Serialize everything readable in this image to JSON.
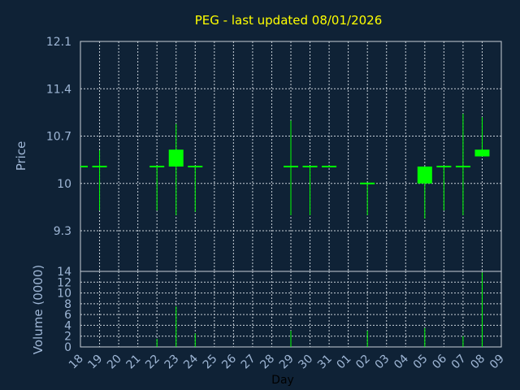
{
  "chart_data": {
    "type": "candlestick",
    "title": "PEG - last updated 08/01/2026",
    "xlabel": "Day",
    "price_ylabel": "Price",
    "volume_ylabel": "Volume (0000)",
    "categories": [
      "18",
      "19",
      "20",
      "21",
      "22",
      "23",
      "24",
      "25",
      "26",
      "27",
      "28",
      "29",
      "30",
      "31",
      "01",
      "02",
      "03",
      "04",
      "05",
      "06",
      "07",
      "08",
      "09"
    ],
    "price_ticks": [
      "12.1",
      "11.4",
      "10.7",
      "10",
      "9.3"
    ],
    "price_range": [
      8.7,
      12.1
    ],
    "volume_ticks": [
      "14",
      "12",
      "10",
      "8",
      "6",
      "4",
      "2",
      "0"
    ],
    "volume_range": [
      0,
      14
    ],
    "grid": true,
    "candles": [
      {
        "day": "18",
        "open": 10.25,
        "close": 10.25,
        "high": 10.25,
        "low": 10.25,
        "volume": 0
      },
      {
        "day": "19",
        "open": 10.25,
        "close": 10.25,
        "high": 10.49,
        "low": 9.6,
        "volume": 0
      },
      {
        "day": "22",
        "open": 10.25,
        "close": 10.25,
        "high": 10.25,
        "low": 9.6,
        "volume": 1.5
      },
      {
        "day": "23",
        "open": 10.25,
        "close": 10.5,
        "high": 10.88,
        "low": 9.53,
        "volume": 7.5
      },
      {
        "day": "24",
        "open": 10.25,
        "close": 10.25,
        "high": 10.25,
        "low": 9.58,
        "volume": 2.5
      },
      {
        "day": "29",
        "open": 10.25,
        "close": 10.25,
        "high": 10.93,
        "low": 9.53,
        "volume": 3
      },
      {
        "day": "30",
        "open": 10.25,
        "close": 10.25,
        "high": 10.25,
        "low": 9.53,
        "volume": 0
      },
      {
        "day": "31",
        "open": 10.25,
        "close": 10.25,
        "high": 10.25,
        "low": 10.25,
        "volume": 0
      },
      {
        "day": "02",
        "open": 10.0,
        "close": 10.0,
        "high": 10.0,
        "low": 9.53,
        "volume": 3
      },
      {
        "day": "05",
        "open": 10.0,
        "close": 10.25,
        "high": 10.25,
        "low": 9.48,
        "volume": 3.5
      },
      {
        "day": "06",
        "open": 10.25,
        "close": 10.25,
        "high": 10.25,
        "low": 9.6,
        "volume": 0
      },
      {
        "day": "07",
        "open": 10.25,
        "close": 10.25,
        "high": 11.03,
        "low": 9.53,
        "volume": 2
      },
      {
        "day": "08",
        "open": 10.4,
        "close": 10.5,
        "high": 10.98,
        "low": 10.4,
        "volume": 13.8
      }
    ]
  },
  "colors": {
    "background": "#0f2236",
    "grid": "#c8d0d8",
    "axis_text": "#9fb7d6",
    "title": "#ffff00",
    "candle": "#00ff00"
  }
}
